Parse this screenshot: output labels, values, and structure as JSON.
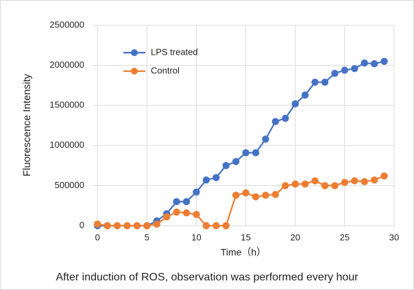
{
  "chart_data": {
    "type": "line",
    "xlabel": "Time（h）",
    "ylabel": "Fluorescence Intensity",
    "caption": "After induction of ROS, observation was performed every hour",
    "x": [
      0,
      1,
      2,
      3,
      4,
      5,
      6,
      7,
      8,
      9,
      10,
      11,
      12,
      13,
      14,
      15,
      16,
      17,
      18,
      19,
      20,
      21,
      22,
      23,
      24,
      25,
      26,
      27,
      28,
      29
    ],
    "series": [
      {
        "name": "LPS treated",
        "color": "#4472c4",
        "values": [
          0,
          0,
          0,
          0,
          0,
          0,
          60000,
          150000,
          300000,
          300000,
          420000,
          570000,
          600000,
          750000,
          800000,
          910000,
          910000,
          1080000,
          1300000,
          1340000,
          1520000,
          1630000,
          1790000,
          1790000,
          1900000,
          1940000,
          1960000,
          2030000,
          2020000,
          2050000
        ]
      },
      {
        "name": "Control",
        "color": "#ed7d31",
        "values": [
          20000,
          0,
          0,
          0,
          0,
          0,
          20000,
          110000,
          170000,
          160000,
          140000,
          0,
          0,
          0,
          380000,
          410000,
          360000,
          380000,
          390000,
          500000,
          520000,
          520000,
          560000,
          500000,
          500000,
          540000,
          560000,
          550000,
          570000,
          620000
        ]
      }
    ],
    "xlim": [
      -0.5,
      30
    ],
    "xticks": [
      0,
      5,
      10,
      15,
      20,
      25,
      30
    ],
    "ylim": [
      0,
      2500000
    ],
    "yticks": [
      0,
      500000,
      1000000,
      1500000,
      2000000,
      2500000
    ],
    "grid": true,
    "legend": "upper left"
  }
}
